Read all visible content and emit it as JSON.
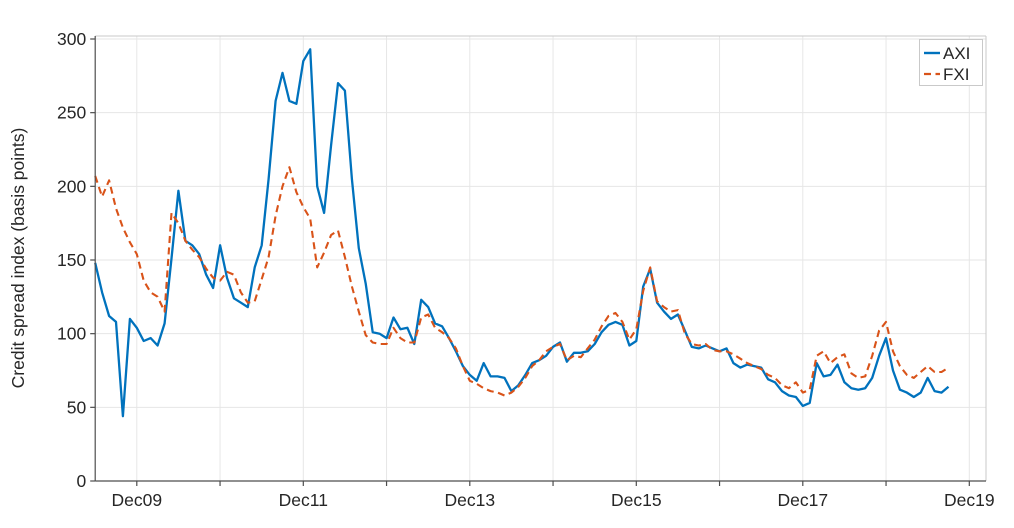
{
  "figure": {
    "background": "#ffffff",
    "axis_color": "#4d4d4d",
    "box_color": "#c9c9c9",
    "grid_color": "#e6e6e6"
  },
  "chart_data": {
    "type": "line",
    "title": "",
    "xlabel": "",
    "ylabel": "Credit spread index (basis points)",
    "ylim": [
      0,
      300
    ],
    "yticks": [
      0,
      50,
      100,
      150,
      200,
      250,
      300
    ],
    "xtick_labels": [
      "Dec09",
      "Dec11",
      "Dec13",
      "Dec15",
      "Dec17",
      "Dec19"
    ],
    "x_start_label": "Jun09",
    "x_end_label": "Sep19",
    "x_frequency": "monthly",
    "n_points": 124,
    "grid": true,
    "legend_position": "top-right",
    "series": [
      {
        "name": "AXI",
        "color": "#0072BD",
        "style": "solid",
        "values": [
          148,
          128,
          112,
          108,
          44,
          110,
          104,
          95,
          97,
          92,
          107,
          151,
          197,
          163,
          160,
          154,
          140,
          131,
          160,
          138,
          124,
          121,
          118,
          145,
          160,
          205,
          258,
          277,
          258,
          256,
          285,
          293,
          200,
          182,
          228,
          270,
          265,
          205,
          158,
          134,
          101,
          100,
          97,
          111,
          103,
          104,
          93,
          123,
          118,
          107,
          105,
          97,
          88,
          78,
          72,
          68,
          80,
          71,
          71,
          70,
          61,
          65,
          72,
          80,
          82,
          85,
          91,
          94,
          81,
          87,
          87,
          88,
          93,
          101,
          106,
          108,
          106,
          92,
          95,
          132,
          144,
          121,
          115,
          110,
          113,
          102,
          91,
          90,
          92,
          90,
          88,
          90,
          80,
          77,
          79,
          78,
          77,
          69,
          67,
          61,
          58,
          57,
          51,
          53,
          80,
          71,
          72,
          79,
          67,
          63,
          62,
          63,
          70,
          85,
          97,
          75,
          62,
          60,
          57,
          60,
          70,
          61,
          60,
          64
        ]
      },
      {
        "name": "FXI",
        "color": "#D95319",
        "style": "dashed",
        "values": [
          207,
          193,
          204,
          185,
          172,
          162,
          154,
          136,
          128,
          125,
          115,
          182,
          175,
          163,
          157,
          152,
          144,
          138,
          136,
          142,
          140,
          128,
          121,
          122,
          137,
          152,
          180,
          200,
          213,
          196,
          186,
          178,
          145,
          155,
          167,
          170,
          152,
          132,
          115,
          99,
          94,
          93,
          93,
          104,
          97,
          94,
          94,
          111,
          113,
          104,
          101,
          97,
          90,
          78,
          68,
          66,
          63,
          61,
          60,
          58,
          60,
          64,
          70,
          78,
          82,
          88,
          91,
          93,
          82,
          85,
          84,
          90,
          96,
          105,
          112,
          114,
          108,
          96,
          103,
          129,
          145,
          122,
          118,
          115,
          116,
          100,
          93,
          92,
          93,
          89,
          88,
          88,
          86,
          83,
          80,
          78,
          76,
          72,
          70,
          65,
          63,
          67,
          60,
          62,
          85,
          88,
          80,
          84,
          86,
          73,
          70,
          71,
          85,
          102,
          108,
          88,
          78,
          72,
          70,
          74,
          78,
          74,
          74,
          77
        ]
      }
    ]
  }
}
